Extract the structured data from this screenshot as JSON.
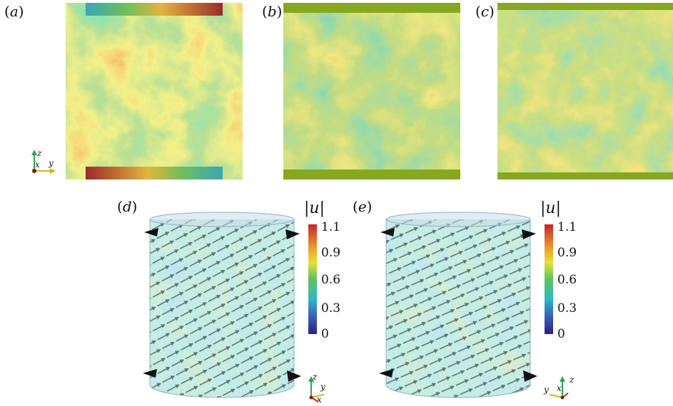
{
  "panels": [
    {
      "id": "a",
      "label": "a"
    },
    {
      "id": "b",
      "label": "b"
    },
    {
      "id": "c",
      "label": "c"
    },
    {
      "id": "d",
      "label": "d"
    },
    {
      "id": "e",
      "label": "e"
    }
  ],
  "colorbar": {
    "title": "|u|",
    "ticks": [
      "1.1",
      "0.9",
      "0.6",
      "0.3",
      "0"
    ],
    "colors": [
      "#c0262c",
      "#e9962b",
      "#e4e33b",
      "#5fc15f",
      "#2fb8c4",
      "#3b59b6",
      "#28247a"
    ]
  },
  "axes_top": {
    "x": "x",
    "y": "y",
    "z": "z"
  },
  "axes_d": {
    "x": "x",
    "y": "y",
    "z": "z"
  },
  "axes_e": {
    "x": "x",
    "y": "y",
    "z": "z"
  }
}
